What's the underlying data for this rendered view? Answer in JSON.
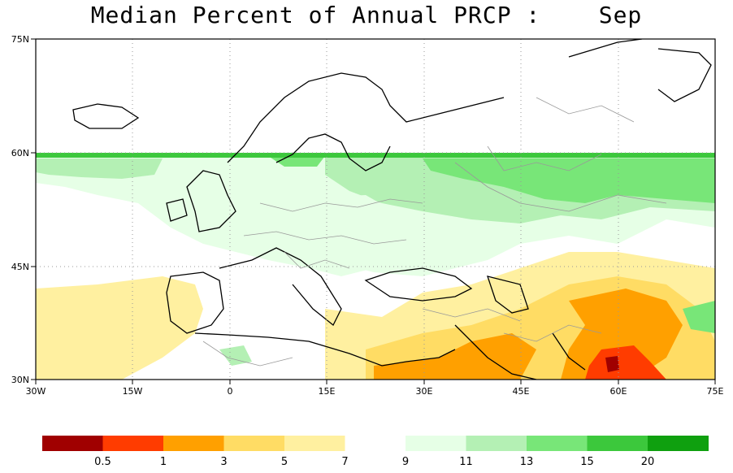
{
  "title": "Median Percent of Annual PRCP :    Sep",
  "map": {
    "projection": "lat-lon",
    "lon_range": [
      -30,
      75
    ],
    "lat_range": [
      30,
      75
    ],
    "grid": "dotted",
    "lat_labels": [
      "75N",
      "60N",
      "45N",
      "30N"
    ],
    "lon_labels": [
      "30W",
      "15W",
      "0",
      "15E",
      "30E",
      "45E",
      "60E",
      "75E"
    ]
  },
  "colorbar": {
    "colors": [
      "#a00000",
      "#ff3c00",
      "#ffa000",
      "#ffdc64",
      "#fff0a0",
      "#ffffff",
      "#e6ffe6",
      "#b4f0b4",
      "#78e678",
      "#3cc83c",
      "#0fa00f"
    ],
    "labels": [
      "0.5",
      "1",
      "3",
      "5",
      "7",
      "9",
      "11",
      "13",
      "15",
      "20"
    ]
  }
}
